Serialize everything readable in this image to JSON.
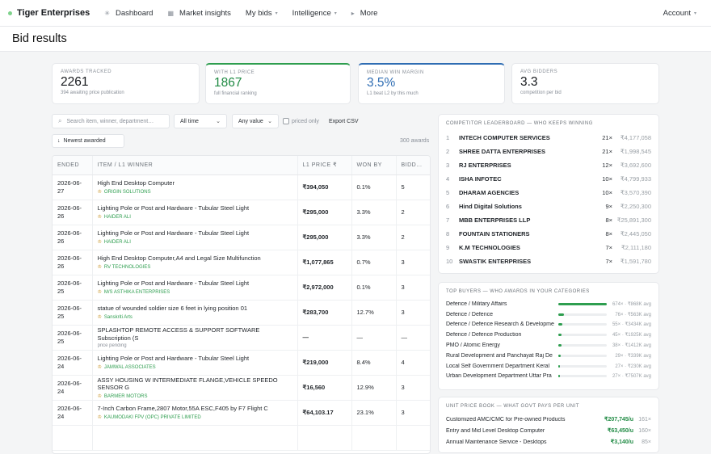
{
  "app": {
    "brand": "Tiger Enterprises"
  },
  "nav": [
    {
      "label": "Dashboard",
      "icon": "sparkle-icon",
      "glyph": "✳",
      "caret": false
    },
    {
      "label": "Market insights",
      "icon": "grid-icon",
      "glyph": "▦",
      "caret": false
    },
    {
      "label": "My bids",
      "icon": "",
      "glyph": "",
      "caret": true
    },
    {
      "label": "Intelligence",
      "icon": "",
      "glyph": "",
      "caret": true
    },
    {
      "label": "More",
      "icon": "arrow-right-icon",
      "glyph": "▸",
      "caret": false
    }
  ],
  "account": {
    "label": "Account"
  },
  "page": {
    "title": "Bid results"
  },
  "kpis": [
    {
      "label": "AWARDS TRACKED",
      "value": "2261",
      "sub": "394 awaiting price publication"
    },
    {
      "label": "WITH L1 PRICE",
      "value": "1867",
      "sub": "full financial ranking"
    },
    {
      "label": "MEDIAN WIN MARGIN",
      "value": "3.5%",
      "sub": "L1 beat L2 by this much"
    },
    {
      "label": "AVG BIDDERS",
      "value": "3.3",
      "sub": "competition per bid"
    }
  ],
  "filters": {
    "search_placeholder": "Search item, winner, department…",
    "time": "All time",
    "value": "Any value",
    "priced_only": "priced only",
    "export": "Export CSV",
    "sort": "Newest awarded",
    "count": "300 awards"
  },
  "table": {
    "headers": [
      "ENDED",
      "ITEM / L1 WINNER",
      "L1 PRICE ₹",
      "WON BY",
      "BIDD…"
    ],
    "rows": [
      {
        "ended": "2026-06-27",
        "item": "High End Desktop Computer",
        "winner": "ORIGIN SOLUTIONS",
        "price": "₹394,050",
        "won_by": "0.1%",
        "bidders": "5"
      },
      {
        "ended": "2026-06-26",
        "item": "Lighting Pole or Post and Hardware - Tubular Steel Light",
        "winner": "HAIDER ALI",
        "price": "₹295,000",
        "won_by": "3.3%",
        "bidders": "2"
      },
      {
        "ended": "2026-06-26",
        "item": "Lighting Pole or Post and Hardware - Tubular Steel Light",
        "winner": "HAIDER ALI",
        "price": "₹295,000",
        "won_by": "3.3%",
        "bidders": "2"
      },
      {
        "ended": "2026-06-26",
        "item": "High End Desktop Computer,A4 and Legal Size Multifunction",
        "winner": "RV TECHNOLOGIES",
        "price": "₹1,077,865",
        "won_by": "0.7%",
        "bidders": "3"
      },
      {
        "ended": "2026-06-25",
        "item": "Lighting Pole or Post and Hardware - Tubular Steel Light",
        "winner": "M/S ASTHIKA ENTERPRISES",
        "price": "₹2,972,000",
        "won_by": "0.1%",
        "bidders": "3"
      },
      {
        "ended": "2026-06-25",
        "item": "statue of wounded soldier size 6 feet in lying position 01",
        "winner": "Sanskriti Arts",
        "price": "₹283,700",
        "won_by": "12.7%",
        "bidders": "3"
      },
      {
        "ended": "2026-06-25",
        "item": "SPLASHTOP REMOTE ACCESS & SUPPORT SOFTWARE Subscription (S",
        "winner": "price pending",
        "price": "—",
        "won_by": "—",
        "bidders": "—",
        "pending": true
      },
      {
        "ended": "2026-06-24",
        "item": "Lighting Pole or Post and Hardware - Tubular Steel Light",
        "winner": "JAMWAL ASSOCIATES",
        "price": "₹219,000",
        "won_by": "8.4%",
        "bidders": "4"
      },
      {
        "ended": "2026-06-24",
        "item": "ASSY HOUSING W INTERMEDIATE FLANGE,VEHICLE SPEEDO SENSOR G",
        "winner": "BARMER MOTORS",
        "price": "₹16,560",
        "won_by": "12.9%",
        "bidders": "3"
      },
      {
        "ended": "2026-06-24",
        "item": "7-Inch Carbon Frame,2807 Motor,55A ESC,F405 by F7 Flight C",
        "winner": "KAUMODAKI FPV (OPC) PRIVATE LIMITED",
        "price": "₹64,103.17",
        "won_by": "23.1%",
        "bidders": "3"
      },
      {
        "ended": "",
        "item": "",
        "winner": "",
        "price": "",
        "won_by": "",
        "bidders": ""
      }
    ]
  },
  "leaderboard": {
    "title": "COMPETITOR LEADERBOARD — WHO KEEPS WINNING",
    "rows": [
      {
        "rank": "1",
        "name": "INTECH COMPUTER SERVICES",
        "count": "21×",
        "amount": "₹4,177,058"
      },
      {
        "rank": "2",
        "name": "SHREE DATTA ENTERPRISES",
        "count": "21×",
        "amount": "₹1,998,545"
      },
      {
        "rank": "3",
        "name": "RJ ENTERPRISES",
        "count": "12×",
        "amount": "₹3,692,600"
      },
      {
        "rank": "4",
        "name": "ISHA INFOTEC",
        "count": "10×",
        "amount": "₹4,799,933"
      },
      {
        "rank": "5",
        "name": "DHARAM AGENCIES",
        "count": "10×",
        "amount": "₹3,570,390"
      },
      {
        "rank": "6",
        "name": "Hind Digital Solutions",
        "count": "9×",
        "amount": "₹2,250,300"
      },
      {
        "rank": "7",
        "name": "MBB ENTERPRISES LLP",
        "count": "8×",
        "amount": "₹25,891,300"
      },
      {
        "rank": "8",
        "name": "FOUNTAIN STATIONERS",
        "count": "8×",
        "amount": "₹2,445,050"
      },
      {
        "rank": "9",
        "name": "K.M TECHNOLOGIES",
        "count": "7×",
        "amount": "₹2,111,180"
      },
      {
        "rank": "10",
        "name": "SWASTIK ENTERPRISES",
        "count": "7×",
        "amount": "₹1,591,780"
      }
    ]
  },
  "buyers": {
    "title": "TOP BUYERS — WHO AWARDS IN YOUR CATEGORIES",
    "rows": [
      {
        "name": "Defence / Military Affairs",
        "share": 1.0,
        "stat": "674× · ₹868K avg"
      },
      {
        "name": "Defence / Defence",
        "share": 0.12,
        "stat": "76× · ₹563K avg"
      },
      {
        "name": "Defence / Defence Research & Developme",
        "share": 0.08,
        "stat": "55× · ₹3434K avg"
      },
      {
        "name": "Defence / Defence Production",
        "share": 0.07,
        "stat": "45× · ₹1925K avg"
      },
      {
        "name": "PMO / Atomic Energy",
        "share": 0.06,
        "stat": "38× · ₹1412K avg"
      },
      {
        "name": "Rural Development and Panchayat Raj De",
        "share": 0.045,
        "stat": "29× · ₹339K avg"
      },
      {
        "name": "Local Self Government Department Keral",
        "share": 0.042,
        "stat": "27× · ₹230K avg"
      },
      {
        "name": "Urban Development Department Uttar Pra",
        "share": 0.042,
        "stat": "27× · ₹7507K avg"
      }
    ]
  },
  "unit_prices": {
    "title": "UNIT PRICE BOOK — WHAT GOVT PAYS PER UNIT",
    "rows": [
      {
        "name": "Customized AMC/CMC for Pre-owned Products",
        "price": "₹207,745/u",
        "count": "161×"
      },
      {
        "name": "Entry and Mid Level Desktop Computer",
        "price": "₹63,450/u",
        "count": "160×"
      },
      {
        "name": "Annual Maintenance Service - Desktops",
        "price": "₹3,140/u",
        "count": "85×"
      }
    ]
  },
  "colors": {
    "accent_green": "#2e9e4f",
    "accent_blue": "#2f6db3",
    "trophy": "#c9962b"
  }
}
